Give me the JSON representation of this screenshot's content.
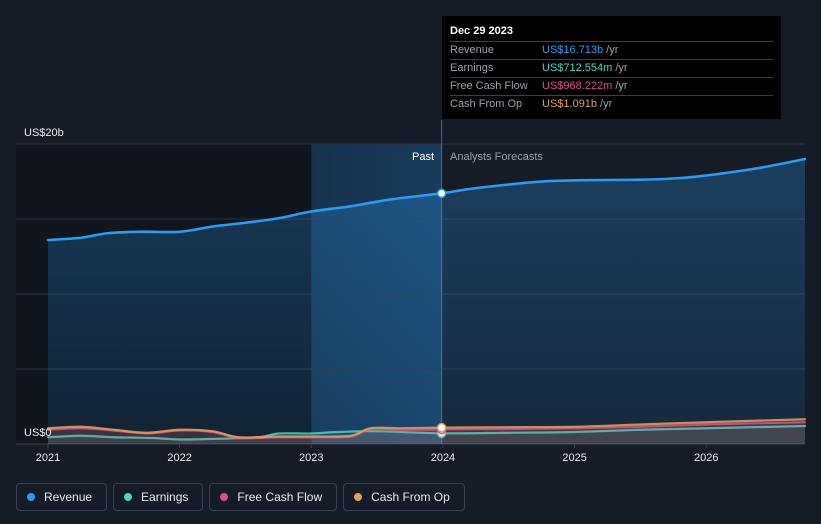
{
  "chart_data": {
    "type": "line",
    "title": "",
    "ylabel_top": "US$20b",
    "ylabel_bottom": "US$0",
    "ylim": [
      0,
      20
    ],
    "xlim": [
      2021.0,
      2026.75
    ],
    "x_ticks": [
      {
        "value": 2021,
        "label": "2021"
      },
      {
        "value": 2022,
        "label": "2022"
      },
      {
        "value": 2023,
        "label": "2023"
      },
      {
        "value": 2024,
        "label": "2024"
      },
      {
        "value": 2025,
        "label": "2025"
      },
      {
        "value": 2026,
        "label": "2026"
      }
    ],
    "gridlines": [
      0,
      5,
      10,
      15,
      20
    ],
    "divider_x": 2023.99,
    "shaded_start_x": 2023.0,
    "past_label": "Past",
    "forecast_label": "Analysts Forecasts",
    "series": [
      {
        "name": "Revenue",
        "color": "#2d9bf0",
        "area": true,
        "points": [
          [
            2021.0,
            13.6
          ],
          [
            2021.25,
            13.75
          ],
          [
            2021.45,
            14.05
          ],
          [
            2021.7,
            14.15
          ],
          [
            2022.0,
            14.15
          ],
          [
            2022.25,
            14.5
          ],
          [
            2022.5,
            14.75
          ],
          [
            2022.75,
            15.05
          ],
          [
            2023.0,
            15.5
          ],
          [
            2023.3,
            15.85
          ],
          [
            2023.6,
            16.3
          ],
          [
            2023.99,
            16.71
          ],
          [
            2024.2,
            17.0
          ],
          [
            2024.5,
            17.3
          ],
          [
            2024.75,
            17.5
          ],
          [
            2025.0,
            17.58
          ],
          [
            2025.5,
            17.62
          ],
          [
            2025.75,
            17.7
          ],
          [
            2026.0,
            17.9
          ],
          [
            2026.4,
            18.4
          ],
          [
            2026.75,
            19.0
          ]
        ]
      },
      {
        "name": "Earnings",
        "color": "#4fd1c5",
        "area": false,
        "points": [
          [
            2021.0,
            0.45
          ],
          [
            2021.25,
            0.55
          ],
          [
            2021.5,
            0.45
          ],
          [
            2021.8,
            0.4
          ],
          [
            2022.0,
            0.3
          ],
          [
            2022.3,
            0.35
          ],
          [
            2022.6,
            0.45
          ],
          [
            2022.75,
            0.7
          ],
          [
            2023.0,
            0.7
          ],
          [
            2023.2,
            0.8
          ],
          [
            2023.5,
            0.85
          ],
          [
            2023.99,
            0.71
          ],
          [
            2024.5,
            0.75
          ],
          [
            2025.0,
            0.8
          ],
          [
            2025.5,
            0.95
          ],
          [
            2026.0,
            1.05
          ],
          [
            2026.75,
            1.2
          ]
        ]
      },
      {
        "name": "Free Cash Flow",
        "color": "#d94c8f",
        "area": false,
        "points": [
          [
            2021.0,
            0.95
          ],
          [
            2021.25,
            1.05
          ],
          [
            2021.5,
            0.9
          ],
          [
            2021.75,
            0.7
          ],
          [
            2022.0,
            0.9
          ],
          [
            2022.25,
            0.8
          ],
          [
            2022.45,
            0.4
          ],
          [
            2022.75,
            0.45
          ],
          [
            2023.0,
            0.45
          ],
          [
            2023.3,
            0.5
          ],
          [
            2023.45,
            1.0
          ],
          [
            2023.7,
            0.95
          ],
          [
            2023.99,
            0.97
          ],
          [
            2024.5,
            1.0
          ],
          [
            2025.0,
            1.05
          ],
          [
            2025.5,
            1.15
          ],
          [
            2026.0,
            1.3
          ],
          [
            2026.75,
            1.45
          ]
        ]
      },
      {
        "name": "Cash From Op",
        "color": "#e3a15c",
        "area": false,
        "points": [
          [
            2021.0,
            1.05
          ],
          [
            2021.25,
            1.15
          ],
          [
            2021.5,
            0.95
          ],
          [
            2021.75,
            0.75
          ],
          [
            2022.0,
            0.95
          ],
          [
            2022.25,
            0.85
          ],
          [
            2022.45,
            0.45
          ],
          [
            2022.75,
            0.5
          ],
          [
            2023.0,
            0.5
          ],
          [
            2023.3,
            0.55
          ],
          [
            2023.45,
            1.05
          ],
          [
            2023.7,
            1.05
          ],
          [
            2023.99,
            1.09
          ],
          [
            2024.5,
            1.12
          ],
          [
            2025.0,
            1.15
          ],
          [
            2025.5,
            1.3
          ],
          [
            2026.0,
            1.45
          ],
          [
            2026.75,
            1.65
          ]
        ]
      }
    ]
  },
  "tooltip": {
    "date": "Dec 29 2023",
    "rows": [
      {
        "label": "Revenue",
        "value": "US$16.713b",
        "unit": "/yr",
        "color": "#2d9bf0"
      },
      {
        "label": "Earnings",
        "value": "US$712.554m",
        "unit": "/yr",
        "color": "#4fd1c5"
      },
      {
        "label": "Free Cash Flow",
        "value": "US$968.222m",
        "unit": "/yr",
        "color": "#d94c8f"
      },
      {
        "label": "Cash From Op",
        "value": "US$1.091b",
        "unit": "/yr",
        "color": "#e3a15c"
      }
    ]
  },
  "legend": [
    {
      "label": "Revenue",
      "color": "#2d9bf0"
    },
    {
      "label": "Earnings",
      "color": "#4fd1c5"
    },
    {
      "label": "Free Cash Flow",
      "color": "#d94c8f"
    },
    {
      "label": "Cash From Op",
      "color": "#e3a15c"
    }
  ]
}
